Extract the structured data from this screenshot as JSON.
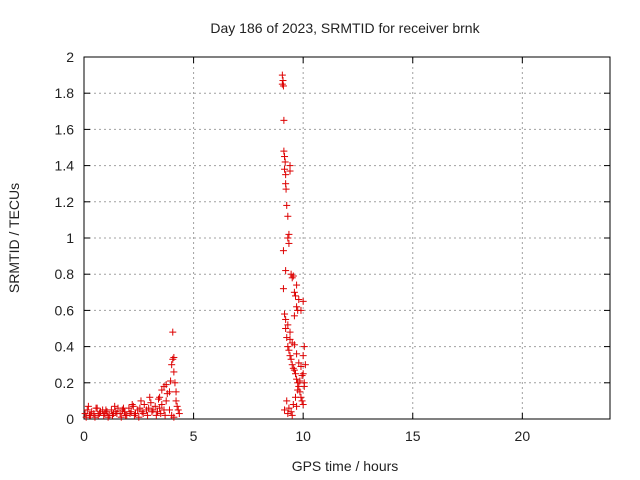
{
  "chart_data": {
    "type": "scatter",
    "title": "Day 186 of 2023, SRMTID for receiver brnk",
    "xlabel": "GPS time / hours",
    "ylabel": "SRMTID / TECUs",
    "xlim": [
      0,
      24
    ],
    "ylim": [
      0,
      2
    ],
    "xticks": [
      0,
      5,
      10,
      15,
      20
    ],
    "xtick_labels": [
      "0",
      "5",
      "10",
      "15",
      "20"
    ],
    "yticks": [
      0,
      0.2,
      0.4,
      0.6,
      0.8,
      1,
      1.2,
      1.4,
      1.6,
      1.8,
      2
    ],
    "ytick_labels": [
      "0",
      "0.2",
      "0.4",
      "0.6",
      "0.8",
      "1",
      "1.2",
      "1.4",
      "1.6",
      "1.8",
      "2"
    ],
    "grid": true,
    "marker": "+",
    "color": "#dd0000",
    "series": [
      {
        "name": "SRMTID",
        "x": [
          0.05,
          0.15,
          0.25,
          0.35,
          0.45,
          0.55,
          0.65,
          0.75,
          0.85,
          0.95,
          1.05,
          1.15,
          1.25,
          1.35,
          1.45,
          1.55,
          1.65,
          1.75,
          1.85,
          1.95,
          2.05,
          2.15,
          2.25,
          2.35,
          2.45,
          2.55,
          2.65,
          2.75,
          2.85,
          2.95,
          3.05,
          3.15,
          3.25,
          3.35,
          3.45,
          3.55,
          3.65,
          3.75,
          0.1,
          0.3,
          0.5,
          0.7,
          0.9,
          1.1,
          1.3,
          1.5,
          1.7,
          1.9,
          2.1,
          2.3,
          2.5,
          2.7,
          2.9,
          3.1,
          3.3,
          3.5,
          3.7,
          0.2,
          0.6,
          1.0,
          1.4,
          1.8,
          2.2,
          2.6,
          3.0,
          3.4,
          3.45,
          3.55,
          3.65,
          3.75,
          3.8,
          3.9,
          3.95,
          4.0,
          4.05,
          4.05,
          4.1,
          4.1,
          4.15,
          4.2,
          4.2,
          4.25,
          4.3,
          4.35,
          4.1,
          4.0,
          3.9,
          9.05,
          9.05,
          9.08,
          9.1,
          9.1,
          9.12,
          9.12,
          9.15,
          9.15,
          9.18,
          9.2,
          9.2,
          9.22,
          9.25,
          9.3,
          9.3,
          9.35,
          9.35,
          9.4,
          9.4,
          9.45,
          9.5,
          9.55,
          9.6,
          9.65,
          9.7,
          9.7,
          9.75,
          9.1,
          9.15,
          9.2,
          9.25,
          9.3,
          9.35,
          9.4,
          9.45,
          9.5,
          9.55,
          9.6,
          9.65,
          9.7,
          9.75,
          9.8,
          9.85,
          9.9,
          9.95,
          10.0,
          10.05,
          10.1,
          9.2,
          9.3,
          9.4,
          9.5,
          9.6,
          9.7,
          9.8,
          9.9,
          10.0,
          10.05,
          9.25,
          9.35,
          9.45,
          9.55,
          9.65,
          9.75,
          9.85,
          9.95,
          10.0,
          10.05,
          9.15,
          9.3,
          9.5,
          9.7,
          9.9,
          10.0,
          9.4,
          9.6,
          9.8,
          9.2
        ],
        "y": [
          0.03,
          0.05,
          0.02,
          0.04,
          0.03,
          0.06,
          0.02,
          0.04,
          0.05,
          0.03,
          0.04,
          0.02,
          0.05,
          0.03,
          0.04,
          0.06,
          0.03,
          0.05,
          0.04,
          0.02,
          0.06,
          0.04,
          0.07,
          0.03,
          0.05,
          0.06,
          0.04,
          0.08,
          0.05,
          0.06,
          0.09,
          0.05,
          0.07,
          0.04,
          0.06,
          0.08,
          0.05,
          0.1,
          0.01,
          0.02,
          0.01,
          0.03,
          0.02,
          0.01,
          0.02,
          0.03,
          0.01,
          0.02,
          0.03,
          0.02,
          0.01,
          0.03,
          0.02,
          0.04,
          0.02,
          0.03,
          0.02,
          0.07,
          0.06,
          0.05,
          0.07,
          0.06,
          0.08,
          0.1,
          0.12,
          0.11,
          0.12,
          0.16,
          0.18,
          0.19,
          0.14,
          0.15,
          0.21,
          0.3,
          0.33,
          0.48,
          0.34,
          0.26,
          0.2,
          0.15,
          0.1,
          0.07,
          0.05,
          0.03,
          0.01,
          0.02,
          0.05,
          1.9,
          1.85,
          1.87,
          1.84,
          0.93,
          1.65,
          1.48,
          1.45,
          1.38,
          1.42,
          1.35,
          1.3,
          1.27,
          1.18,
          1.12,
          1.0,
          1.02,
          0.97,
          1.4,
          1.37,
          0.8,
          0.78,
          0.79,
          0.7,
          0.68,
          0.74,
          0.62,
          0.6,
          0.72,
          0.58,
          0.5,
          0.45,
          0.4,
          0.38,
          0.35,
          0.33,
          0.3,
          0.28,
          0.27,
          0.25,
          0.22,
          0.2,
          0.18,
          0.15,
          0.12,
          0.1,
          0.08,
          0.2,
          0.3,
          0.55,
          0.52,
          0.48,
          0.42,
          0.41,
          0.36,
          0.31,
          0.29,
          0.25,
          0.18,
          0.1,
          0.06,
          0.04,
          0.08,
          0.12,
          0.16,
          0.21,
          0.24,
          0.35,
          0.4,
          0.05,
          0.03,
          0.02,
          0.07,
          0.6,
          0.65,
          0.44,
          0.57,
          0.66,
          0.82
        ]
      }
    ]
  }
}
